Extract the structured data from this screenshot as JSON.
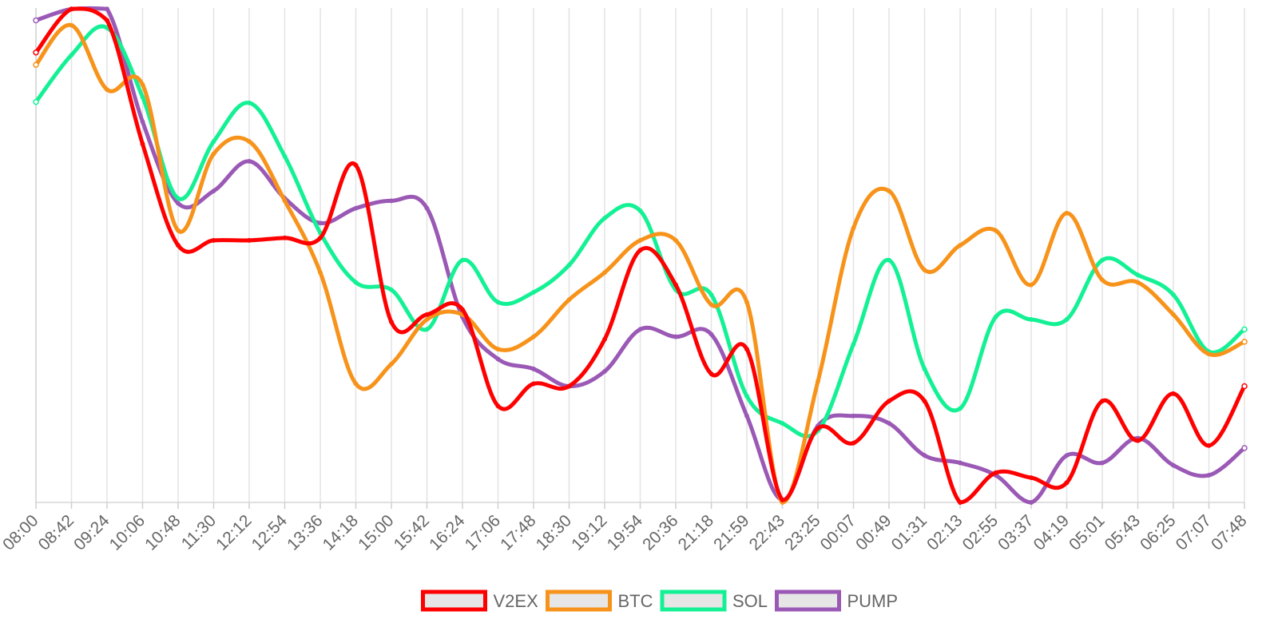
{
  "chart_data": {
    "type": "line",
    "title": "",
    "xlabel": "",
    "ylabel": "",
    "grid": "vertical",
    "legend_position": "bottom-center",
    "normalized_scale": true,
    "x": [
      "08:00",
      "08:42",
      "09:24",
      "10:06",
      "10:48",
      "11:30",
      "12:12",
      "12:54",
      "13:36",
      "14:18",
      "15:00",
      "15:42",
      "16:24",
      "17:06",
      "17:48",
      "18:30",
      "19:12",
      "19:54",
      "20:36",
      "21:18",
      "21:59",
      "22:43",
      "23:25",
      "00:07",
      "00:49",
      "01:31",
      "02:13",
      "02:55",
      "03:37",
      "04:19",
      "05:01",
      "05:43",
      "06:25",
      "07:07",
      "07:48"
    ],
    "colors": {
      "V2EX": "#ff0000",
      "BTC": "#f7931a",
      "SOL": "#14f195",
      "PUMP": "#9b59b6"
    },
    "series": [
      {
        "name": "V2EX",
        "color": "#ff0000",
        "values": [
          0.91,
          0.998,
          0.975,
          0.725,
          0.52,
          0.53,
          0.53,
          0.535,
          0.535,
          0.682,
          0.365,
          0.38,
          0.39,
          0.195,
          0.24,
          0.235,
          0.33,
          0.51,
          0.44,
          0.26,
          0.31,
          0.005,
          0.15,
          0.12,
          0.205,
          0.205,
          0.0,
          0.06,
          0.05,
          0.04,
          0.205,
          0.125,
          0.22,
          0.115,
          0.235
        ]
      },
      {
        "name": "BTC",
        "color": "#f7931a",
        "values": [
          0.885,
          0.965,
          0.835,
          0.845,
          0.55,
          0.705,
          0.73,
          0.61,
          0.465,
          0.24,
          0.28,
          0.37,
          0.38,
          0.31,
          0.335,
          0.41,
          0.465,
          0.53,
          0.53,
          0.4,
          0.405,
          0.0,
          0.245,
          0.555,
          0.63,
          0.47,
          0.52,
          0.55,
          0.44,
          0.585,
          0.45,
          0.445,
          0.38,
          0.3,
          0.325
        ]
      },
      {
        "name": "SOL",
        "color": "#14f195",
        "values": [
          0.81,
          0.905,
          0.96,
          0.82,
          0.615,
          0.73,
          0.808,
          0.7,
          0.545,
          0.445,
          0.43,
          0.35,
          0.49,
          0.405,
          0.425,
          0.48,
          0.575,
          0.59,
          0.43,
          0.42,
          0.215,
          0.16,
          0.145,
          0.32,
          0.49,
          0.27,
          0.19,
          0.375,
          0.37,
          0.37,
          0.49,
          0.46,
          0.42,
          0.305,
          0.35
        ]
      },
      {
        "name": "PUMP",
        "color": "#9b59b6",
        "values": [
          0.975,
          0.998,
          0.998,
          0.77,
          0.605,
          0.63,
          0.69,
          0.615,
          0.565,
          0.595,
          0.61,
          0.595,
          0.375,
          0.29,
          0.27,
          0.235,
          0.265,
          0.35,
          0.335,
          0.34,
          0.175,
          0.005,
          0.155,
          0.175,
          0.16,
          0.095,
          0.08,
          0.055,
          0.0,
          0.095,
          0.08,
          0.13,
          0.075,
          0.055,
          0.11
        ]
      }
    ]
  }
}
